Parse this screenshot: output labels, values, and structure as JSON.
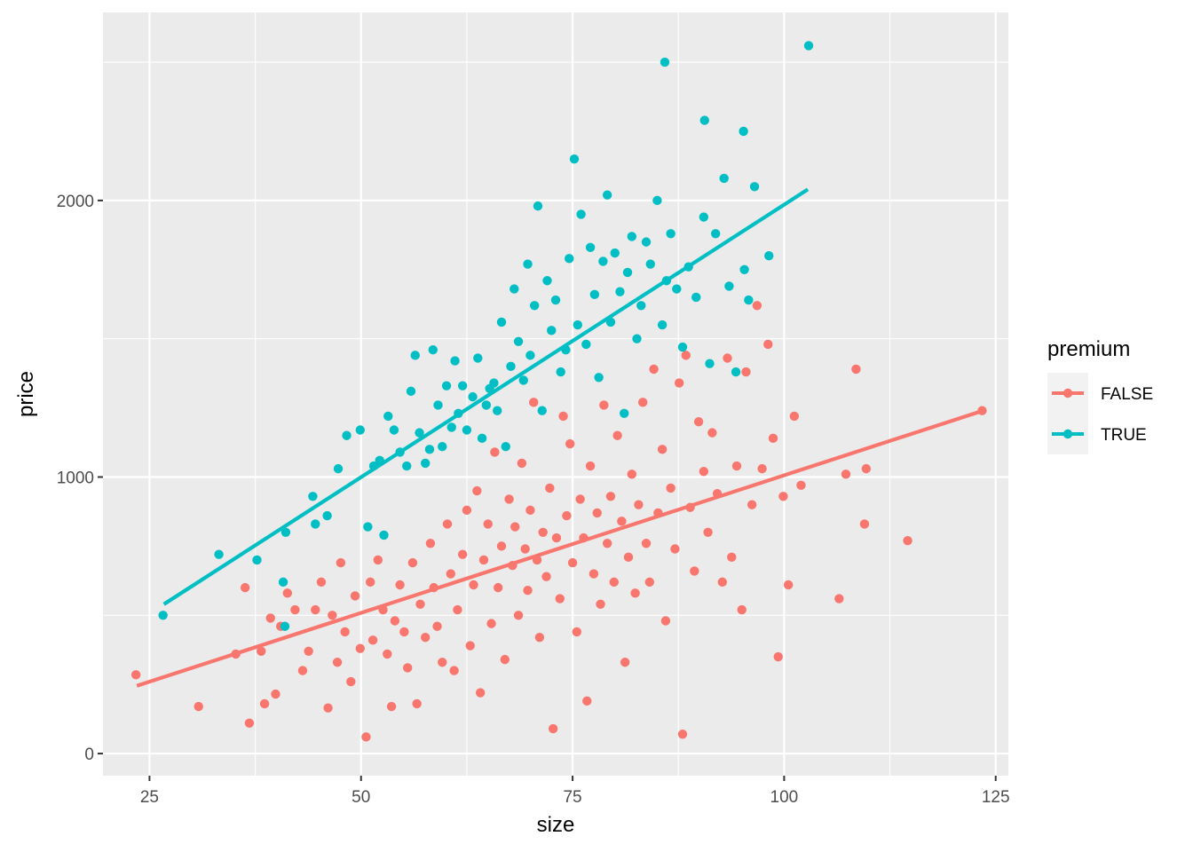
{
  "chart_data": {
    "type": "scatter",
    "xlabel": "size",
    "ylabel": "price",
    "xlim": [
      19.5,
      126.5
    ],
    "ylim": [
      -80,
      2680
    ],
    "x_ticks": [
      25,
      50,
      75,
      100,
      125
    ],
    "x_tick_labels": [
      "25",
      "50",
      "75",
      "100",
      "125"
    ],
    "y_ticks": [
      0,
      1000,
      2000
    ],
    "y_tick_labels": [
      "0",
      "1000",
      "2000"
    ],
    "grid": true,
    "legend": {
      "title": "premium",
      "position": "right",
      "entries": [
        "FALSE",
        "TRUE"
      ]
    },
    "series": [
      {
        "name": "FALSE",
        "color": "#F8766D",
        "trend_line": {
          "x": [
            23.5,
            123.5
          ],
          "y": [
            245,
            1240
          ]
        },
        "points": [
          [
            23.4,
            285
          ],
          [
            30.8,
            170
          ],
          [
            35.2,
            360
          ],
          [
            36.3,
            600
          ],
          [
            36.8,
            110
          ],
          [
            38.2,
            370
          ],
          [
            38.6,
            180
          ],
          [
            39.3,
            490
          ],
          [
            39.9,
            215
          ],
          [
            40.5,
            460
          ],
          [
            41.3,
            580
          ],
          [
            42.2,
            520
          ],
          [
            43.1,
            300
          ],
          [
            43.8,
            370
          ],
          [
            44.6,
            520
          ],
          [
            45.3,
            620
          ],
          [
            46.1,
            165
          ],
          [
            46.6,
            500
          ],
          [
            47.2,
            330
          ],
          [
            47.6,
            690
          ],
          [
            48.1,
            440
          ],
          [
            48.8,
            260
          ],
          [
            49.3,
            570
          ],
          [
            49.9,
            380
          ],
          [
            50.6,
            60
          ],
          [
            51.1,
            620
          ],
          [
            51.4,
            410
          ],
          [
            52.0,
            700
          ],
          [
            52.6,
            520
          ],
          [
            53.1,
            360
          ],
          [
            53.6,
            170
          ],
          [
            54.0,
            480
          ],
          [
            54.6,
            610
          ],
          [
            55.1,
            440
          ],
          [
            55.5,
            310
          ],
          [
            56.1,
            690
          ],
          [
            56.6,
            180
          ],
          [
            57.0,
            540
          ],
          [
            57.6,
            420
          ],
          [
            58.2,
            760
          ],
          [
            58.6,
            600
          ],
          [
            59.0,
            460
          ],
          [
            59.6,
            330
          ],
          [
            60.2,
            830
          ],
          [
            60.6,
            650
          ],
          [
            61.0,
            300
          ],
          [
            61.4,
            520
          ],
          [
            62.0,
            720
          ],
          [
            62.5,
            880
          ],
          [
            62.9,
            390
          ],
          [
            63.3,
            610
          ],
          [
            63.7,
            950
          ],
          [
            64.1,
            220
          ],
          [
            64.5,
            700
          ],
          [
            65.0,
            830
          ],
          [
            65.4,
            470
          ],
          [
            65.8,
            1090
          ],
          [
            66.2,
            600
          ],
          [
            66.6,
            750
          ],
          [
            67.0,
            340
          ],
          [
            67.5,
            920
          ],
          [
            67.9,
            680
          ],
          [
            68.2,
            820
          ],
          [
            68.6,
            500
          ],
          [
            69.0,
            1050
          ],
          [
            69.4,
            740
          ],
          [
            69.7,
            590
          ],
          [
            70.0,
            880
          ],
          [
            70.4,
            1270
          ],
          [
            70.8,
            700
          ],
          [
            71.1,
            420
          ],
          [
            71.5,
            800
          ],
          [
            71.9,
            640
          ],
          [
            72.3,
            960
          ],
          [
            72.7,
            90
          ],
          [
            73.1,
            780
          ],
          [
            73.5,
            560
          ],
          [
            73.9,
            1220
          ],
          [
            74.3,
            860
          ],
          [
            74.7,
            1120
          ],
          [
            75.0,
            690
          ],
          [
            75.5,
            440
          ],
          [
            75.9,
            920
          ],
          [
            76.3,
            780
          ],
          [
            76.7,
            190
          ],
          [
            77.1,
            1040
          ],
          [
            77.5,
            650
          ],
          [
            77.9,
            870
          ],
          [
            78.3,
            540
          ],
          [
            78.7,
            1260
          ],
          [
            79.1,
            760
          ],
          [
            79.5,
            930
          ],
          [
            79.9,
            620
          ],
          [
            80.3,
            1150
          ],
          [
            80.8,
            840
          ],
          [
            81.2,
            330
          ],
          [
            81.6,
            710
          ],
          [
            82.0,
            1010
          ],
          [
            82.4,
            580
          ],
          [
            82.8,
            900
          ],
          [
            83.3,
            1270
          ],
          [
            83.7,
            760
          ],
          [
            84.1,
            620
          ],
          [
            84.6,
            1390
          ],
          [
            85.1,
            870
          ],
          [
            85.6,
            1100
          ],
          [
            86.0,
            480
          ],
          [
            86.6,
            960
          ],
          [
            87.1,
            740
          ],
          [
            87.6,
            1340
          ],
          [
            88.0,
            70
          ],
          [
            88.4,
            1440
          ],
          [
            88.9,
            890
          ],
          [
            89.4,
            660
          ],
          [
            89.9,
            1200
          ],
          [
            90.5,
            1020
          ],
          [
            91.0,
            800
          ],
          [
            91.5,
            1160
          ],
          [
            92.1,
            940
          ],
          [
            92.7,
            620
          ],
          [
            93.3,
            1430
          ],
          [
            93.8,
            710
          ],
          [
            94.4,
            1040
          ],
          [
            95.0,
            520
          ],
          [
            95.5,
            1380
          ],
          [
            96.2,
            900
          ],
          [
            96.8,
            1620
          ],
          [
            97.4,
            1030
          ],
          [
            98.1,
            1480
          ],
          [
            98.7,
            1140
          ],
          [
            99.3,
            350
          ],
          [
            99.9,
            930
          ],
          [
            100.5,
            610
          ],
          [
            101.2,
            1220
          ],
          [
            102.0,
            970
          ],
          [
            106.5,
            560
          ],
          [
            107.3,
            1010
          ],
          [
            108.5,
            1390
          ],
          [
            109.5,
            830
          ],
          [
            109.7,
            1030
          ],
          [
            114.6,
            770
          ],
          [
            123.4,
            1240
          ]
        ]
      },
      {
        "name": "TRUE",
        "color": "#00BFC4",
        "trend_line": {
          "x": [
            26.7,
            102.8
          ],
          "y": [
            540,
            2040
          ]
        },
        "points": [
          [
            26.6,
            500
          ],
          [
            33.2,
            720
          ],
          [
            37.7,
            700
          ],
          [
            40.8,
            620
          ],
          [
            41.0,
            460
          ],
          [
            41.1,
            800
          ],
          [
            44.3,
            930
          ],
          [
            44.6,
            830
          ],
          [
            46.0,
            860
          ],
          [
            47.3,
            1030
          ],
          [
            48.3,
            1150
          ],
          [
            49.9,
            1170
          ],
          [
            50.8,
            820
          ],
          [
            51.5,
            1040
          ],
          [
            52.2,
            1060
          ],
          [
            52.7,
            790
          ],
          [
            53.2,
            1220
          ],
          [
            53.9,
            1170
          ],
          [
            54.6,
            1090
          ],
          [
            55.4,
            1040
          ],
          [
            55.9,
            1310
          ],
          [
            56.4,
            1440
          ],
          [
            56.9,
            1160
          ],
          [
            57.6,
            1050
          ],
          [
            58.1,
            1100
          ],
          [
            58.5,
            1460
          ],
          [
            59.1,
            1260
          ],
          [
            59.6,
            1110
          ],
          [
            60.1,
            1330
          ],
          [
            60.7,
            1180
          ],
          [
            61.1,
            1420
          ],
          [
            61.5,
            1230
          ],
          [
            62.0,
            1330
          ],
          [
            62.5,
            1170
          ],
          [
            63.2,
            1290
          ],
          [
            63.8,
            1430
          ],
          [
            64.3,
            1140
          ],
          [
            64.8,
            1260
          ],
          [
            65.2,
            1320
          ],
          [
            65.7,
            1340
          ],
          [
            66.1,
            1240
          ],
          [
            66.6,
            1560
          ],
          [
            67.1,
            1110
          ],
          [
            67.7,
            1400
          ],
          [
            68.1,
            1680
          ],
          [
            68.6,
            1490
          ],
          [
            69.2,
            1350
          ],
          [
            69.7,
            1770
          ],
          [
            70.0,
            1440
          ],
          [
            70.5,
            1620
          ],
          [
            70.9,
            1980
          ],
          [
            71.4,
            1240
          ],
          [
            72.0,
            1710
          ],
          [
            72.5,
            1530
          ],
          [
            73.0,
            1640
          ],
          [
            73.6,
            1380
          ],
          [
            74.2,
            1460
          ],
          [
            74.6,
            1790
          ],
          [
            75.2,
            2150
          ],
          [
            75.6,
            1550
          ],
          [
            76.0,
            1950
          ],
          [
            76.6,
            1480
          ],
          [
            77.1,
            1830
          ],
          [
            77.6,
            1660
          ],
          [
            78.1,
            1360
          ],
          [
            78.6,
            1780
          ],
          [
            79.1,
            2020
          ],
          [
            79.5,
            1560
          ],
          [
            80.0,
            1810
          ],
          [
            80.6,
            1670
          ],
          [
            81.1,
            1230
          ],
          [
            81.5,
            1740
          ],
          [
            82.0,
            1870
          ],
          [
            82.6,
            1500
          ],
          [
            83.1,
            1620
          ],
          [
            83.7,
            1850
          ],
          [
            84.2,
            1770
          ],
          [
            85.0,
            2000
          ],
          [
            85.6,
            1550
          ],
          [
            86.1,
            1710
          ],
          [
            86.6,
            1880
          ],
          [
            87.3,
            1680
          ],
          [
            88.0,
            1470
          ],
          [
            88.7,
            1760
          ],
          [
            89.6,
            1650
          ],
          [
            90.5,
            1940
          ],
          [
            91.2,
            1410
          ],
          [
            91.9,
            1880
          ],
          [
            92.9,
            2080
          ],
          [
            93.5,
            1690
          ],
          [
            94.3,
            1380
          ],
          [
            95.3,
            1750
          ],
          [
            95.8,
            1640
          ],
          [
            96.5,
            2050
          ],
          [
            98.2,
            1800
          ],
          [
            85.9,
            2500
          ],
          [
            90.6,
            2290
          ],
          [
            95.2,
            2250
          ],
          [
            102.9,
            2560
          ]
        ]
      }
    ]
  }
}
